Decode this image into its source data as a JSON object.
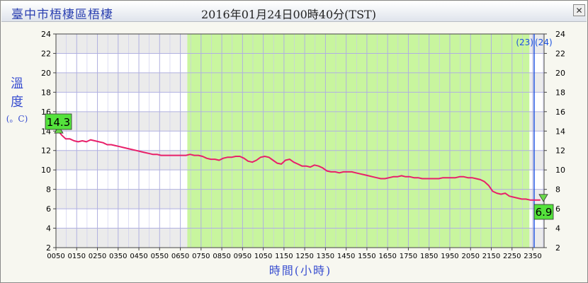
{
  "header": {
    "station": "臺中市梧棲區梧棲",
    "datetime": "2016年01月24日00時40分(TST)"
  },
  "chart_data": {
    "type": "line",
    "ylabel_lines": [
      "溫",
      "度"
    ],
    "yunit": "(。C)",
    "xlabel": "時間(小時)",
    "ylim": [
      2,
      24
    ],
    "yticks": [
      2,
      4,
      6,
      8,
      10,
      12,
      14,
      16,
      18,
      20,
      22,
      24
    ],
    "xticks": [
      "0050",
      "0150",
      "0250",
      "0350",
      "0450",
      "0550",
      "0650",
      "0750",
      "0850",
      "0950",
      "1050",
      "1150",
      "1250",
      "1350",
      "1450",
      "1550",
      "1650",
      "1750",
      "1850",
      "1950",
      "2050",
      "2150",
      "2250",
      "2350"
    ],
    "grid": true,
    "highlight_band": {
      "from_tick": "0710",
      "to_tick": "2340",
      "color": "#c6f59a"
    },
    "day_divider": {
      "left_label": "(23)",
      "right_label": "(24)"
    },
    "max_label": "14.3",
    "min_label": "6.9",
    "line_color": "#e8206a",
    "series": [
      {
        "name": "",
        "x_hours": [
          0.83,
          0.95,
          1.1,
          1.3,
          1.5,
          1.7,
          1.9,
          2.1,
          2.3,
          2.5,
          2.7,
          2.9,
          3.1,
          3.3,
          3.5,
          3.7,
          3.9,
          4.1,
          4.3,
          4.5,
          4.7,
          4.9,
          5.1,
          5.3,
          5.5,
          5.7,
          5.9,
          6.1,
          6.3,
          6.5,
          6.7,
          6.9,
          7.1,
          7.3,
          7.5,
          7.7,
          7.9,
          8.1,
          8.3,
          8.5,
          8.7,
          8.9,
          9.1,
          9.3,
          9.5,
          9.7,
          9.9,
          10.1,
          10.3,
          10.5,
          10.7,
          10.9,
          11.1,
          11.3,
          11.5,
          11.7,
          11.9,
          12.1,
          12.3,
          12.5,
          12.7,
          12.9,
          13.1,
          13.3,
          13.5,
          13.7,
          13.9,
          14.1,
          14.3,
          14.5,
          14.7,
          14.9,
          15.1,
          15.3,
          15.5,
          15.7,
          15.9,
          16.1,
          16.3,
          16.5,
          16.7,
          16.9,
          17.1,
          17.3,
          17.5,
          17.7,
          17.9,
          18.1,
          18.3,
          18.5,
          18.7,
          18.9,
          19.1,
          19.3,
          19.5,
          19.7,
          19.9,
          20.1,
          20.3,
          20.5,
          20.7,
          20.9,
          21.1,
          21.3,
          21.5,
          21.7,
          21.9,
          22.1,
          22.3,
          22.5,
          22.7,
          22.9,
          23.1,
          23.3,
          23.5,
          23.7,
          23.9,
          24.2
        ],
        "values": [
          14.3,
          14.0,
          13.6,
          13.2,
          13.2,
          13.0,
          12.9,
          13.0,
          12.9,
          13.1,
          13.0,
          12.9,
          12.8,
          12.6,
          12.6,
          12.5,
          12.4,
          12.3,
          12.2,
          12.1,
          12.0,
          11.9,
          11.8,
          11.7,
          11.6,
          11.6,
          11.5,
          11.5,
          11.5,
          11.5,
          11.5,
          11.5,
          11.5,
          11.6,
          11.5,
          11.5,
          11.4,
          11.2,
          11.1,
          11.1,
          11.0,
          11.2,
          11.3,
          11.3,
          11.4,
          11.4,
          11.2,
          10.9,
          10.8,
          11.0,
          11.3,
          11.4,
          11.3,
          11.0,
          10.7,
          10.6,
          11.0,
          11.1,
          10.8,
          10.6,
          10.4,
          10.4,
          10.3,
          10.5,
          10.4,
          10.2,
          9.9,
          9.8,
          9.8,
          9.7,
          9.8,
          9.8,
          9.8,
          9.7,
          9.6,
          9.5,
          9.4,
          9.3,
          9.2,
          9.1,
          9.1,
          9.2,
          9.3,
          9.3,
          9.4,
          9.3,
          9.3,
          9.2,
          9.2,
          9.1,
          9.1,
          9.1,
          9.1,
          9.1,
          9.2,
          9.2,
          9.2,
          9.2,
          9.3,
          9.3,
          9.2,
          9.2,
          9.1,
          9.0,
          8.8,
          8.4,
          7.8,
          7.6,
          7.5,
          7.6,
          7.3,
          7.2,
          7.1,
          7.0,
          7.0,
          6.9,
          6.9,
          6.9
        ]
      }
    ]
  }
}
